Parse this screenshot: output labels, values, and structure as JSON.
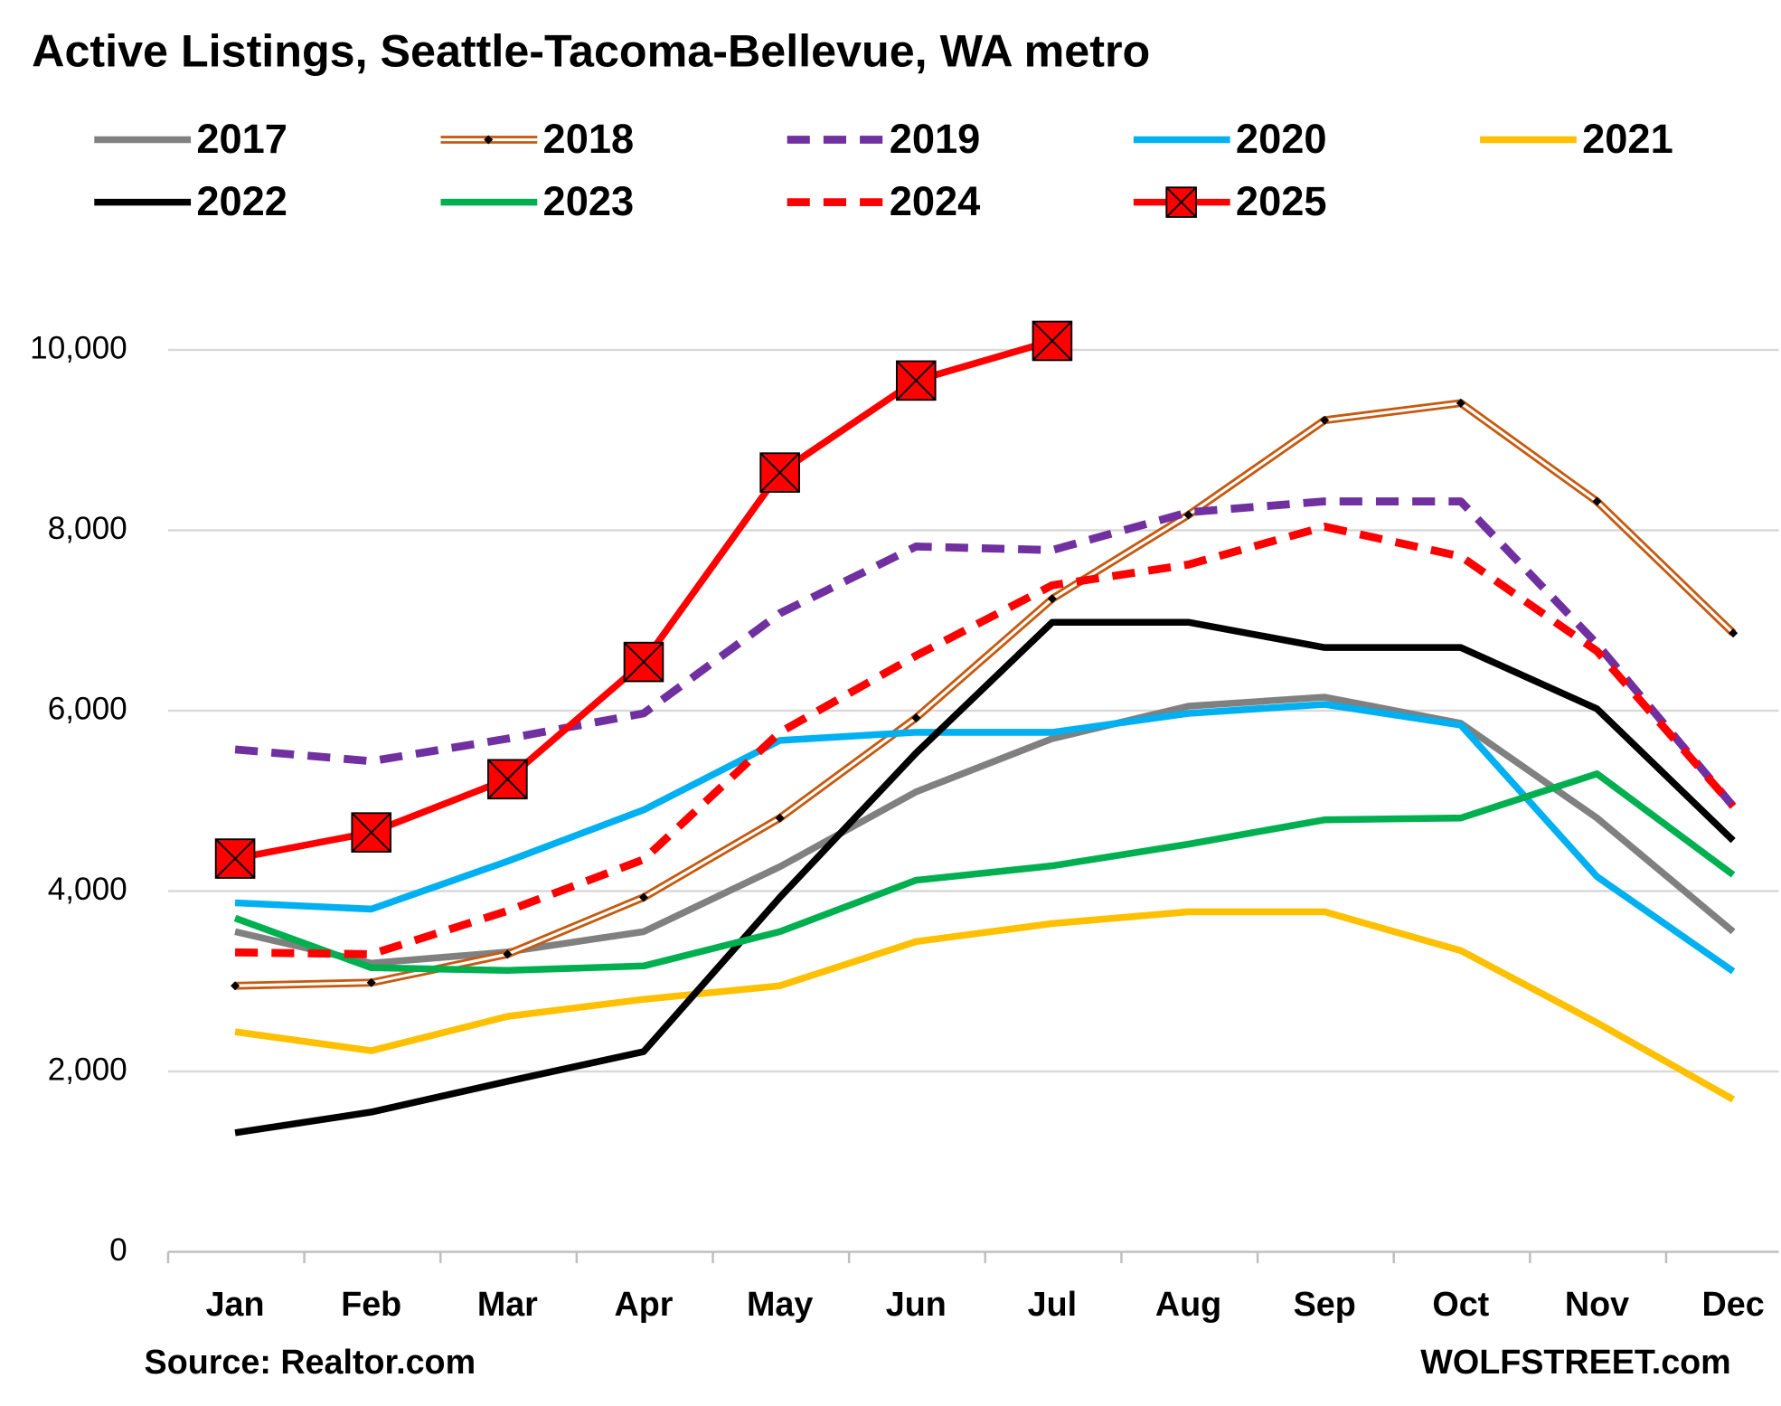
{
  "chart_data": {
    "type": "line",
    "title": "Active Listings, Seattle-Tacoma-Bellevue, WA metro",
    "source": "Source: Realtor.com",
    "credit": "WOLFSTREET.com",
    "categories": [
      "Jan",
      "Feb",
      "Mar",
      "Apr",
      "May",
      "Jun",
      "Jul",
      "Aug",
      "Sep",
      "Oct",
      "Nov",
      "Dec"
    ],
    "ylim": [
      0,
      10000
    ],
    "yticks": [
      0,
      {
        "value": 2000,
        "label": "2,000"
      },
      {
        "value": 4000,
        "label": "4,000"
      },
      {
        "value": 6000,
        "label": "6,000"
      },
      {
        "value": 8000,
        "label": "8,000"
      },
      {
        "value": 10000,
        "label": "10,000"
      }
    ],
    "grid": true,
    "legend": "top",
    "series": [
      {
        "name": "2017",
        "color": "#808080",
        "values": [
          3550,
          3200,
          3325,
          3550,
          4270,
          5100,
          5690,
          6050,
          6150,
          5860,
          4810,
          3550
        ]
      },
      {
        "name": "2018",
        "color": "#c55a11",
        "style": "double",
        "marker": "diamond",
        "values": [
          2950,
          2985,
          3300,
          3930,
          4810,
          5920,
          7240,
          8170,
          9220,
          9410,
          8320,
          6860
        ]
      },
      {
        "name": "2019",
        "color": "#7030a0",
        "dash": true,
        "values": [
          5570,
          5440,
          5690,
          5970,
          7080,
          7820,
          7780,
          8200,
          8320,
          8320,
          6740,
          4940
        ]
      },
      {
        "name": "2020",
        "color": "#00b0f0",
        "values": [
          3870,
          3800,
          4330,
          4900,
          5670,
          5760,
          5760,
          5970,
          6070,
          5840,
          4160,
          3110
        ]
      },
      {
        "name": "2021",
        "color": "#ffc000",
        "values": [
          2440,
          2230,
          2610,
          2800,
          2950,
          3440,
          3640,
          3770,
          3770,
          3340,
          2540,
          1690
        ]
      },
      {
        "name": "2022",
        "color": "#000000",
        "values": [
          1320,
          1550,
          1890,
          2220,
          3930,
          5530,
          6980,
          6980,
          6700,
          6700,
          6020,
          4560
        ]
      },
      {
        "name": "2023",
        "color": "#00b050",
        "values": [
          3700,
          3150,
          3120,
          3170,
          3550,
          4120,
          4280,
          4520,
          4790,
          4810,
          5300,
          4180
        ]
      },
      {
        "name": "2024",
        "color": "#ff0000",
        "dash": true,
        "values": [
          3320,
          3300,
          3780,
          4350,
          5760,
          6610,
          7390,
          7620,
          8040,
          7710,
          6660,
          4940
        ]
      },
      {
        "name": "2025",
        "color": "#ff0000",
        "marker": "square-x",
        "values": [
          4360,
          4650,
          5240,
          6540,
          8640,
          9660,
          10100,
          null,
          null,
          null,
          null,
          null
        ]
      }
    ]
  }
}
